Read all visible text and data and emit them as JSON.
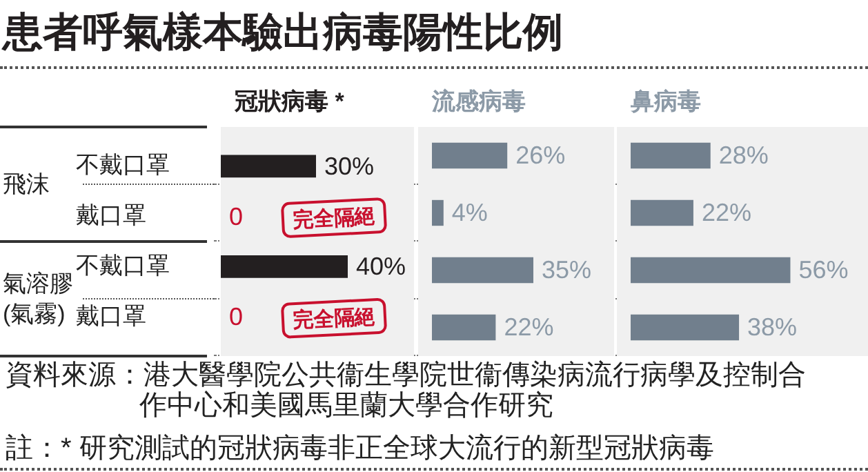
{
  "chart_data": [
    {
      "type": "other",
      "title": "患者呼氣樣本驗出病毒陽性比例",
      "annotations": [
        "資料來源：港大醫學院公共衞生學院世衞傳染病流行病學及控制合作中心和美國馬里蘭大學合作研究",
        "註：* 研究測試的冠狀病毒非正全球大流行的新型冠狀病毒"
      ]
    },
    {
      "type": "bar",
      "orientation": "horizontal",
      "title": "冠狀病毒 *",
      "categories": [
        "不戴口罩",
        "戴口罩",
        "不戴口罩",
        "戴口罩"
      ],
      "tick_labels": "y",
      "annotations": [
        "飛沫",
        "氣溶膠(氣霧)",
        "完全隔絕",
        "完全隔絕"
      ],
      "series": [
        {
          "color": "#231f20",
          "values": [
            30,
            0,
            40,
            0
          ],
          "value_labels": [
            "30%",
            "0",
            "40%",
            "0"
          ]
        }
      ]
    },
    {
      "type": "bar",
      "orientation": "horizontal",
      "title": "流感病毒",
      "tick_labels": false,
      "series": [
        {
          "color": "#717f8d",
          "values": [
            26,
            4,
            35,
            22
          ],
          "value_labels": [
            "26%",
            "4%",
            "35%",
            "22%"
          ]
        }
      ]
    },
    {
      "type": "bar",
      "orientation": "horizontal",
      "title": "鼻病毒",
      "tick_labels": false,
      "series": [
        {
          "color": "#717f8d",
          "values": [
            28,
            22,
            56,
            38
          ],
          "value_labels": [
            "28%",
            "22%",
            "56%",
            "38%"
          ]
        }
      ]
    }
  ]
}
